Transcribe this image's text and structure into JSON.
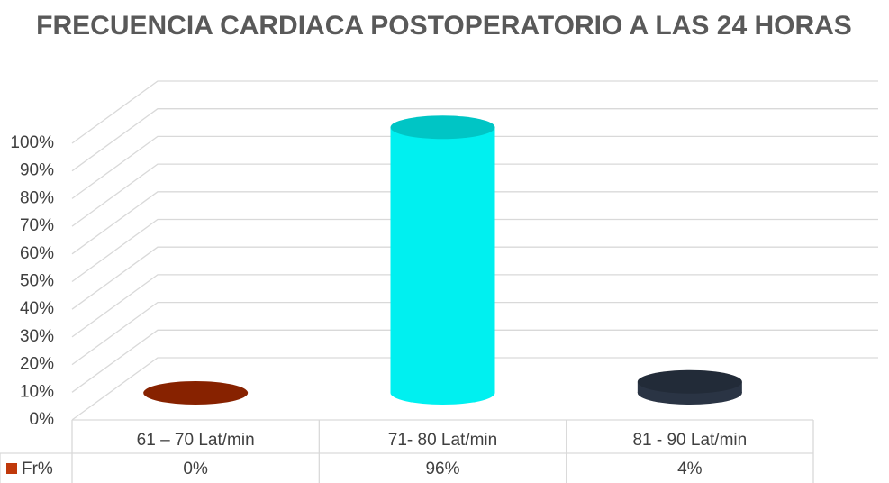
{
  "chart_data": {
    "type": "bar3d",
    "title": "FRECUENCIA CARDIACA POSTOPERATORIO A LAS 24 HORAS",
    "categories": [
      "61 – 70 Lat/min",
      "71- 80 Lat/min",
      "81 - 90 Lat/min"
    ],
    "series": [
      {
        "name": "Fr%",
        "color": "#c0390b",
        "values": [
          0,
          96,
          4
        ],
        "value_labels": [
          "0%",
          "96%",
          "4%"
        ],
        "point_colors": [
          "#a52a00",
          "#00f0f0",
          "#2a3444"
        ]
      }
    ],
    "ylim": [
      0,
      100
    ],
    "yticks": [
      {
        "value": 0,
        "label": "0%"
      },
      {
        "value": 10,
        "label": "10%"
      },
      {
        "value": 20,
        "label": "20%"
      },
      {
        "value": 30,
        "label": "30%"
      },
      {
        "value": 40,
        "label": "40%"
      },
      {
        "value": 50,
        "label": "50%"
      },
      {
        "value": 60,
        "label": "60%"
      },
      {
        "value": 70,
        "label": "70%"
      },
      {
        "value": 80,
        "label": "80%"
      },
      {
        "value": 90,
        "label": "90%"
      },
      {
        "value": 100,
        "label": "100%"
      }
    ],
    "grid": true
  }
}
